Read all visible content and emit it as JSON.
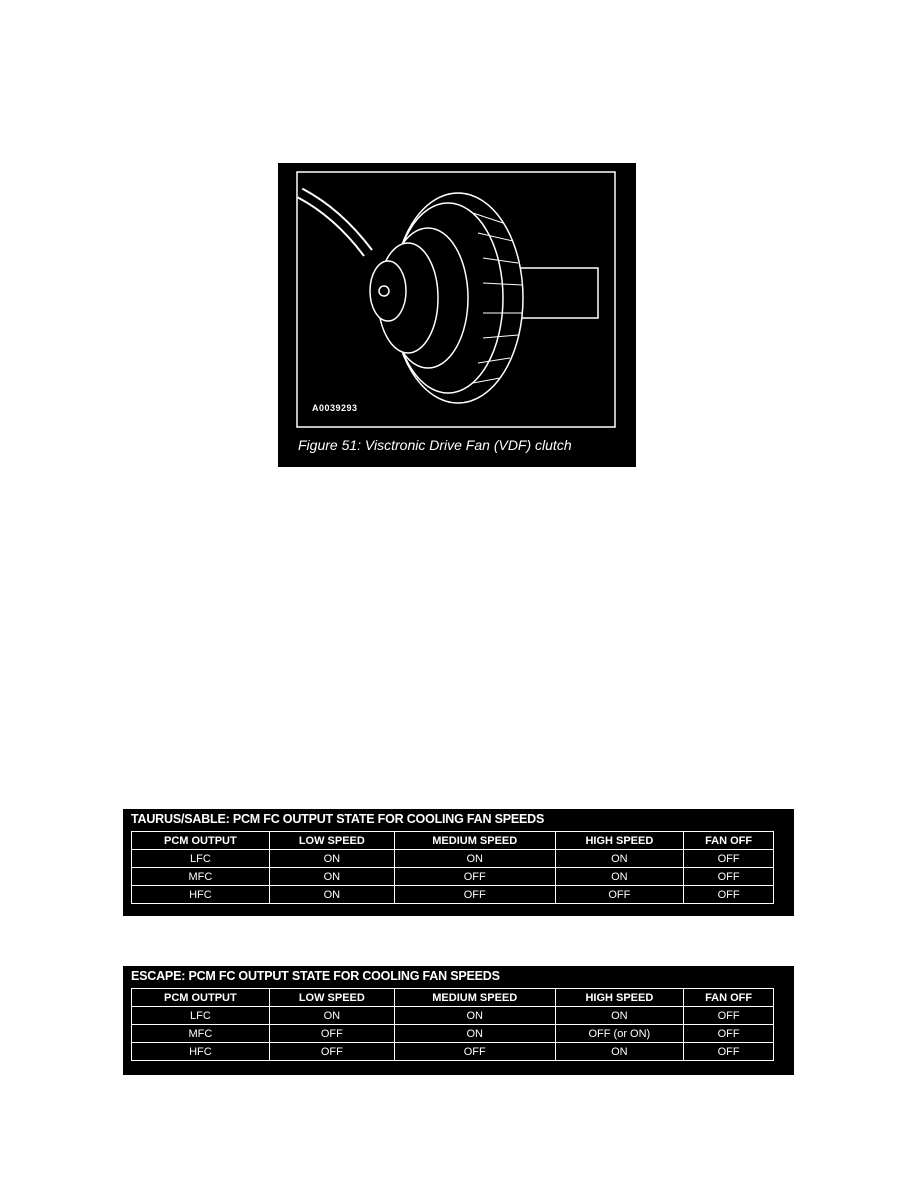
{
  "figure": {
    "id_label": "A0039293",
    "caption": "Figure 51: Visctronic Drive Fan (VDF) clutch"
  },
  "tables": [
    {
      "title": "TAURUS/SABLE: PCM FC OUTPUT STATE FOR COOLING FAN SPEEDS",
      "headers": [
        "PCM OUTPUT",
        "LOW SPEED",
        "MEDIUM SPEED",
        "HIGH SPEED",
        "FAN OFF"
      ],
      "rows": [
        [
          "LFC",
          "ON",
          "ON",
          "ON",
          "OFF"
        ],
        [
          "MFC",
          "ON",
          "OFF",
          "ON",
          "OFF"
        ],
        [
          "HFC",
          "ON",
          "OFF",
          "OFF",
          "OFF"
        ]
      ]
    },
    {
      "title": "ESCAPE: PCM FC OUTPUT STATE FOR COOLING FAN SPEEDS",
      "headers": [
        "PCM OUTPUT",
        "LOW SPEED",
        "MEDIUM SPEED",
        "HIGH SPEED",
        "FAN OFF"
      ],
      "rows": [
        [
          "LFC",
          "ON",
          "ON",
          "ON",
          "OFF"
        ],
        [
          "MFC",
          "OFF",
          "ON",
          "OFF (or ON)",
          "OFF"
        ],
        [
          "HFC",
          "OFF",
          "OFF",
          "ON",
          "OFF"
        ]
      ]
    }
  ]
}
